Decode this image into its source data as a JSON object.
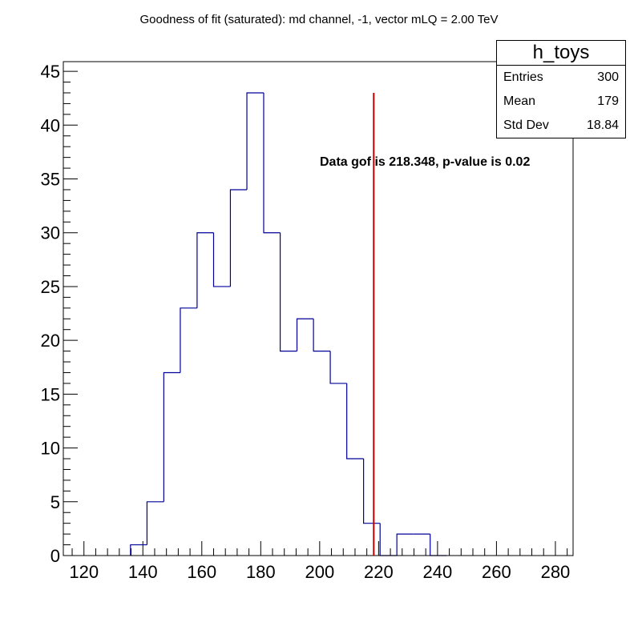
{
  "chart_data": {
    "type": "histogram",
    "title": "Goodness of fit (saturated): md channel, -1, vector mLQ = 2.00 TeV",
    "xlabel": "",
    "ylabel": "",
    "xlim": [
      113,
      286
    ],
    "ylim": [
      0,
      45.9
    ],
    "x_ticks": [
      120,
      140,
      160,
      180,
      200,
      220,
      240,
      260,
      280
    ],
    "y_ticks": [
      0,
      5,
      10,
      15,
      20,
      25,
      30,
      35,
      40,
      45
    ],
    "bins": [
      {
        "x0": 135.8,
        "x1": 141.4,
        "count": 1
      },
      {
        "x0": 141.4,
        "x1": 147.1,
        "count": 5
      },
      {
        "x0": 147.1,
        "x1": 152.7,
        "count": 17
      },
      {
        "x0": 152.7,
        "x1": 158.4,
        "count": 23
      },
      {
        "x0": 158.4,
        "x1": 164.0,
        "count": 30
      },
      {
        "x0": 164.0,
        "x1": 169.7,
        "count": 25
      },
      {
        "x0": 169.7,
        "x1": 175.3,
        "count": 34
      },
      {
        "x0": 175.3,
        "x1": 181.0,
        "count": 43
      },
      {
        "x0": 181.0,
        "x1": 186.6,
        "count": 30
      },
      {
        "x0": 186.6,
        "x1": 192.3,
        "count": 19
      },
      {
        "x0": 192.3,
        "x1": 197.9,
        "count": 22
      },
      {
        "x0": 197.9,
        "x1": 203.6,
        "count": 19
      },
      {
        "x0": 203.6,
        "x1": 209.2,
        "count": 16
      },
      {
        "x0": 209.2,
        "x1": 214.9,
        "count": 9
      },
      {
        "x0": 214.9,
        "x1": 220.5,
        "count": 3
      },
      {
        "x0": 220.5,
        "x1": 226.2,
        "count": 0
      },
      {
        "x0": 226.2,
        "x1": 231.8,
        "count": 2
      },
      {
        "x0": 231.8,
        "x1": 237.5,
        "count": 2
      },
      {
        "x0": 237.5,
        "x1": 243.1,
        "count": 0
      }
    ],
    "series_color": "#000099",
    "marker_line": {
      "x": 218.348,
      "y_top": 43,
      "color": "#cc0000"
    },
    "annotation": "Data gof is 218.348, p-value is 0.02",
    "stats_box": {
      "name": "h_toys",
      "rows": [
        {
          "label": "Entries",
          "value": "300"
        },
        {
          "label": "Mean",
          "value": "179"
        },
        {
          "label": "Std Dev",
          "value": "18.84"
        }
      ]
    }
  }
}
